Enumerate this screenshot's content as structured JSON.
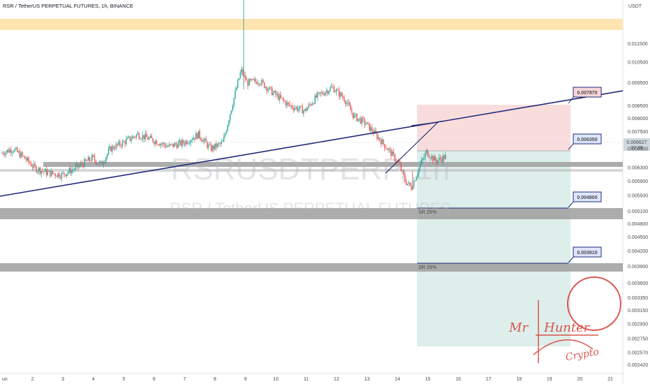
{
  "chart_title": "RSR / TetherUS PERPETUAL FUTURES, 1h, BINANCE",
  "watermark": {
    "symbol": "RSRUSDTPERP, 1h",
    "name": "RSR / TetherUS PERPETUAL FUTURES"
  },
  "currency": "USDT",
  "current_price": "0.006627",
  "countdown": "07:39",
  "colors": {
    "bull": "#26a69a",
    "bear": "#ef5350",
    "line": "#1e2a78",
    "zone": "#ffe4b0",
    "level": "#9e9e9e",
    "stop": "#f8d7d7",
    "target": "#d7ebe8",
    "signature": "#d6453d"
  },
  "signature": {
    "line1": "Mr",
    "line2": "Hunter",
    "line3": "Crypto"
  },
  "chart_data": {
    "type": "candlestick",
    "yscale": "log",
    "ylim": [
      0.00232,
      0.0142
    ],
    "x_ticks": [
      "un",
      "2",
      "3",
      "4",
      "5",
      "6",
      "7",
      "8",
      "9",
      "10",
      "11",
      "12",
      "13",
      "14",
      "15",
      "16",
      "17",
      "18",
      "19",
      "20",
      "21"
    ],
    "y_ticks": [
      "0.011500",
      "0.010500",
      "0.009500",
      "0.008500",
      "0.008000",
      "0.007500",
      "0.006900",
      "0.006300",
      "0.005900",
      "0.005500",
      "0.005100",
      "0.004800",
      "0.004500",
      "0.004200",
      "0.003900",
      "0.003600",
      "0.003350",
      "0.003150",
      "0.002950",
      "0.002750",
      "0.002570",
      "0.002420"
    ],
    "price_labels": [
      {
        "label": "0.007870",
        "value": 0.00787
      },
      {
        "label": "0.006350",
        "value": 0.00635
      },
      {
        "label": "0.004900",
        "value": 0.0049
      },
      {
        "label": "0.003810",
        "value": 0.00381
      }
    ],
    "annotations": [
      "SR 25%",
      "SR 25%"
    ],
    "price_path": [
      {
        "x": 0.0,
        "y": 0.00675
      },
      {
        "x": 0.4,
        "y": 0.0069
      },
      {
        "x": 0.8,
        "y": 0.00658
      },
      {
        "x": 1.1,
        "y": 0.0063
      },
      {
        "x": 1.5,
        "y": 0.00615
      },
      {
        "x": 2.0,
        "y": 0.00608
      },
      {
        "x": 2.5,
        "y": 0.0063
      },
      {
        "x": 3.0,
        "y": 0.0066
      },
      {
        "x": 3.3,
        "y": 0.0064
      },
      {
        "x": 3.6,
        "y": 0.0069
      },
      {
        "x": 4.0,
        "y": 0.0071
      },
      {
        "x": 4.5,
        "y": 0.0074
      },
      {
        "x": 5.0,
        "y": 0.0072
      },
      {
        "x": 5.5,
        "y": 0.00698
      },
      {
        "x": 6.0,
        "y": 0.0071
      },
      {
        "x": 6.5,
        "y": 0.0074
      },
      {
        "x": 6.9,
        "y": 0.0069
      },
      {
        "x": 7.3,
        "y": 0.0071
      },
      {
        "x": 7.6,
        "y": 0.0085
      },
      {
        "x": 7.9,
        "y": 0.0101
      },
      {
        "x": 8.1,
        "y": 0.0095
      },
      {
        "x": 8.5,
        "y": 0.0096
      },
      {
        "x": 9.0,
        "y": 0.009
      },
      {
        "x": 9.5,
        "y": 0.0085
      },
      {
        "x": 10.0,
        "y": 0.0083
      },
      {
        "x": 10.4,
        "y": 0.0089
      },
      {
        "x": 10.9,
        "y": 0.0093
      },
      {
        "x": 11.3,
        "y": 0.0088
      },
      {
        "x": 11.6,
        "y": 0.0081
      },
      {
        "x": 12.0,
        "y": 0.0078
      },
      {
        "x": 12.4,
        "y": 0.0073
      },
      {
        "x": 12.8,
        "y": 0.0068
      },
      {
        "x": 13.1,
        "y": 0.0064
      },
      {
        "x": 13.3,
        "y": 0.0059
      },
      {
        "x": 13.5,
        "y": 0.00572
      },
      {
        "x": 13.8,
        "y": 0.0064
      },
      {
        "x": 14.0,
        "y": 0.0068
      },
      {
        "x": 14.3,
        "y": 0.0065
      },
      {
        "x": 14.6,
        "y": 0.00663
      }
    ],
    "wick_extremes": {
      "high": 0.01425,
      "low": 0.00565
    }
  }
}
